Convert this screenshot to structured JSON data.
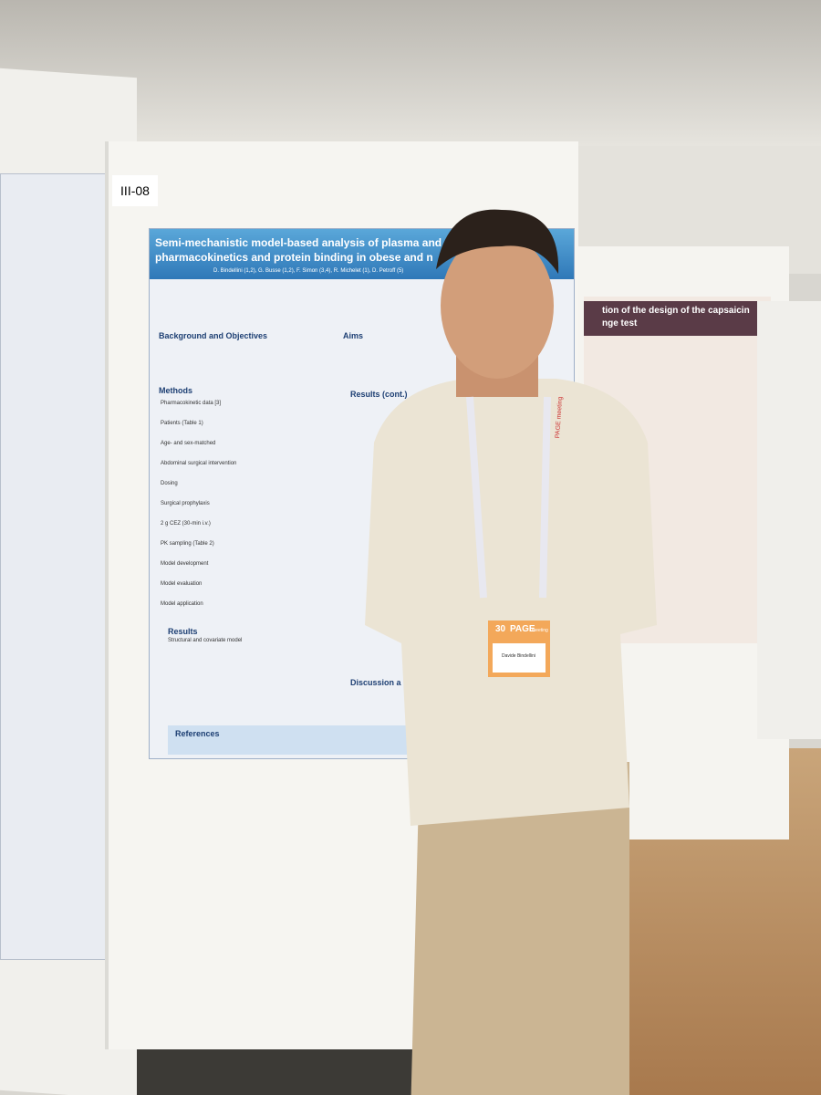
{
  "board_label": "III-08",
  "poster": {
    "title_lines": [
      "Semi-mechanistic model-based analysis of plasma and t",
      "pharmacokinetics and protein binding in obese and n"
    ],
    "authors": "D. Bindellini (1,2), G. Busse (1,2), F. Simon (3,4), R. Michelet (1), D. Petroff (5)",
    "sections": {
      "background": "Background and Objectives",
      "aims": "Aims",
      "methods": "Methods",
      "results_cont": "Results (cont.)",
      "results": "Results",
      "discussion": "Discussion a",
      "references": "References"
    },
    "methods_items": [
      "Pharmacokinetic data [3]",
      "Patients (Table 1)",
      "Age- and sex-matched",
      "Abdominal surgical intervention",
      "Dosing",
      "Surgical prophylaxis",
      "2 g CEZ (30-min i.v.)",
      "PK sampling (Table 2)",
      "Model development",
      "Model evaluation",
      "Model application"
    ],
    "results_items": [
      "Structural and covariate model"
    ]
  },
  "right_poster": {
    "title_lines": [
      "tion of the design of the capsaicin",
      "nge test"
    ]
  },
  "badge": {
    "number": "30",
    "brand": "PAGE",
    "suffix": "meeting",
    "name": "Davide Bindellini"
  },
  "lanyard": "PAGE meeting"
}
